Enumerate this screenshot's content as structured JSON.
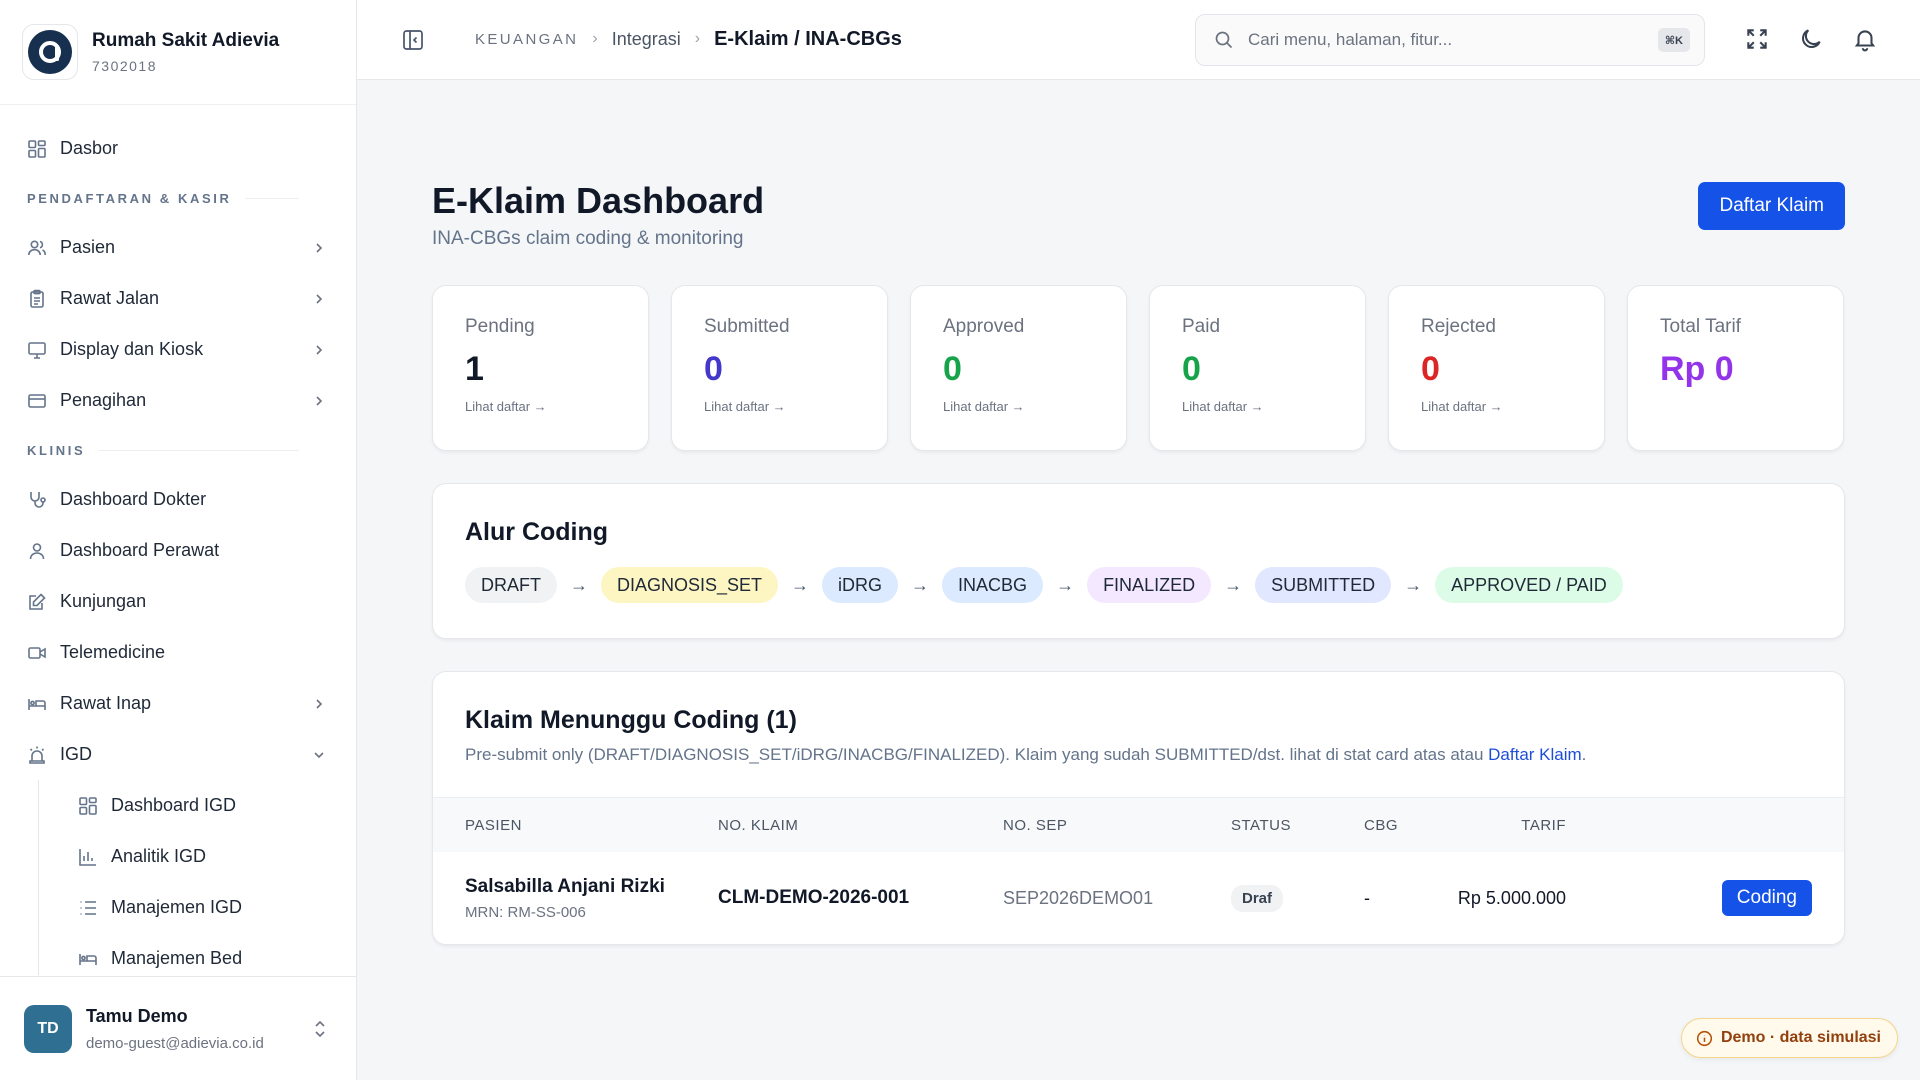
{
  "brand": {
    "name": "Rumah Sakit Adievia",
    "code": "7302018"
  },
  "sidebar": {
    "dashboard": "Dasbor",
    "section_1": "PENDAFTARAN & KASIR",
    "items_1": [
      {
        "label": "Pasien",
        "icon": "users-icon"
      },
      {
        "label": "Rawat Jalan",
        "icon": "clipboard-icon"
      },
      {
        "label": "Display dan Kiosk",
        "icon": "monitor-icon"
      },
      {
        "label": "Penagihan",
        "icon": "credit-card-icon"
      }
    ],
    "section_2": "KLINIS",
    "items_2": [
      {
        "label": "Dashboard Dokter",
        "icon": "stethoscope-icon"
      },
      {
        "label": "Dashboard Perawat",
        "icon": "user-icon"
      },
      {
        "label": "Kunjungan",
        "icon": "edit-note-icon"
      },
      {
        "label": "Telemedicine",
        "icon": "video-icon"
      },
      {
        "label": "Rawat Inap",
        "icon": "bed-icon"
      },
      {
        "label": "IGD",
        "icon": "siren-icon"
      }
    ],
    "igd_sub": [
      {
        "label": "Dashboard IGD",
        "icon": "grid-icon"
      },
      {
        "label": "Analitik IGD",
        "icon": "bar-chart-icon"
      },
      {
        "label": "Manajemen IGD",
        "icon": "list-icon"
      },
      {
        "label": "Manajemen Bed",
        "icon": "bed-icon"
      }
    ]
  },
  "user": {
    "initials": "TD",
    "name": "Tamu Demo",
    "email": "demo-guest@adievia.co.id"
  },
  "topbar": {
    "crumb_root": "KEUANGAN",
    "crumb_mid": "Integrasi",
    "crumb_current": "E-Klaim / INA-CBGs",
    "search_placeholder": "Cari menu, halaman, fitur...",
    "search_shortcut": "⌘K"
  },
  "page": {
    "title": "E-Klaim Dashboard",
    "subtitle": "INA-CBGs claim coding & monitoring",
    "primary_button": "Daftar Klaim"
  },
  "stats": [
    {
      "label": "Pending",
      "value": "1",
      "link": "Lihat daftar →",
      "color": "#111827"
    },
    {
      "label": "Submitted",
      "value": "0",
      "link": "Lihat daftar →",
      "color": "#4338ca"
    },
    {
      "label": "Approved",
      "value": "0",
      "link": "Lihat daftar →",
      "color": "#16a34a"
    },
    {
      "label": "Paid",
      "value": "0",
      "link": "Lihat daftar →",
      "color": "#16a34a"
    },
    {
      "label": "Rejected",
      "value": "0",
      "link": "Lihat daftar →",
      "color": "#dc2626"
    },
    {
      "label": "Total Tarif",
      "value": "Rp 0",
      "link": "",
      "color": "#9333ea"
    }
  ],
  "flow": {
    "title": "Alur Coding",
    "steps": [
      {
        "label": "DRAFT",
        "bg": "#f1f2f4"
      },
      {
        "label": "DIAGNOSIS_SET",
        "bg": "#fdf6c3"
      },
      {
        "label": "iDRG",
        "bg": "#dbeafe"
      },
      {
        "label": "INACBG",
        "bg": "#dbeafe"
      },
      {
        "label": "FINALIZED",
        "bg": "#f3e8ff"
      },
      {
        "label": "SUBMITTED",
        "bg": "#e0e7ff"
      },
      {
        "label": "APPROVED / PAID",
        "bg": "#dcfce7"
      }
    ]
  },
  "claims": {
    "title": "Klaim Menunggu Coding (1)",
    "desc": "Pre-submit only (DRAFT/DIAGNOSIS_SET/iDRG/INACBG/FINALIZED). Klaim yang sudah SUBMITTED/dst. lihat di stat card atas atau ",
    "desc_link": "Daftar Klaim",
    "desc_end": ".",
    "columns": {
      "patient": "PASIEN",
      "claim": "NO. KLAIM",
      "sep": "NO. SEP",
      "status": "STATUS",
      "cbg": "CBG",
      "tarif": "TARIF"
    },
    "rows": [
      {
        "patient": "Salsabilla Anjani Rizki",
        "mrn": "MRN: RM-SS-006",
        "claim": "CLM-DEMO-2026-001",
        "sep": "SEP2026DEMO01",
        "status": "Draf",
        "cbg": "-",
        "tarif": "Rp 5.000.000",
        "action": "Coding"
      }
    ]
  },
  "demo_badge": "Demo · data simulasi"
}
